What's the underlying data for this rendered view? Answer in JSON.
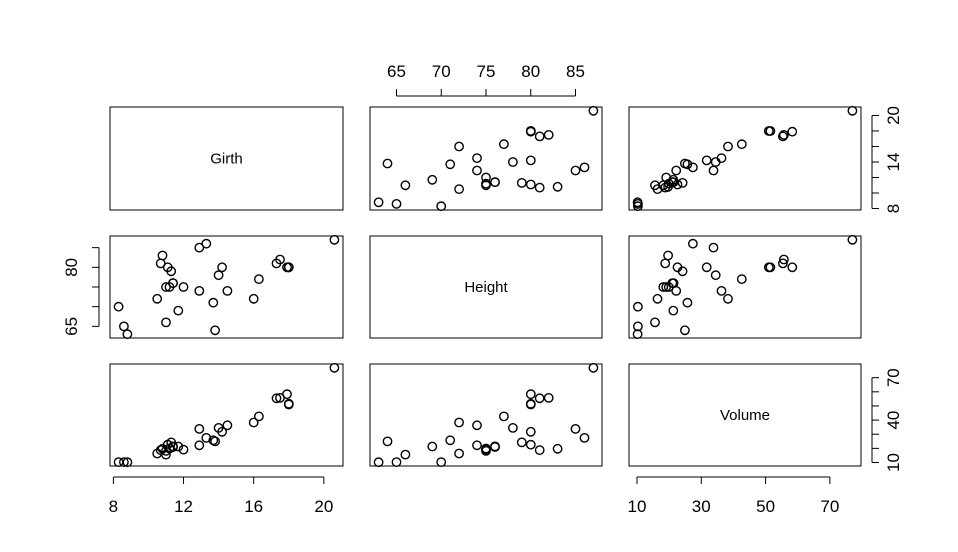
{
  "chart_data": {
    "type": "scatter",
    "title": "",
    "variables": [
      "Girth",
      "Height",
      "Volume"
    ],
    "ranges": {
      "Girth": [
        8.3,
        20.6
      ],
      "Height": [
        63,
        87
      ],
      "Volume": [
        10.2,
        77.0
      ]
    },
    "ticks": {
      "Girth": [
        8,
        12,
        16,
        20
      ],
      "Height": [
        65,
        70,
        75,
        80,
        85
      ],
      "Volume": [
        10,
        30,
        50,
        70
      ]
    },
    "tick_labels": {
      "Girth": [
        "8",
        "12",
        "16",
        "20"
      ],
      "Height": [
        "65",
        "70",
        "75",
        "80",
        "85"
      ],
      "Volume": [
        "10",
        "30",
        "50",
        "70"
      ]
    },
    "left_axis_ticks": {
      "Height": [
        65,
        70,
        75,
        80,
        85
      ]
    },
    "left_axis_labels": {
      "Height": [
        "65",
        "",
        "",
        "80",
        ""
      ]
    },
    "right_axis_ticks": {
      "Girth": [
        8,
        10,
        12,
        14,
        16,
        18,
        20
      ],
      "Volume": [
        10,
        20,
        30,
        40,
        50,
        60,
        70
      ]
    },
    "right_axis_labels": {
      "Girth": [
        "8",
        "",
        "",
        "14",
        "",
        "",
        "20"
      ],
      "Volume": [
        "10",
        "",
        "",
        "40",
        "",
        "",
        "70"
      ]
    },
    "grid": false,
    "points": {
      "Girth": [
        8.3,
        8.6,
        8.8,
        10.5,
        10.7,
        10.8,
        11.0,
        11.0,
        11.1,
        11.2,
        11.3,
        11.4,
        11.4,
        11.7,
        12.0,
        12.9,
        12.9,
        13.3,
        13.7,
        13.8,
        14.0,
        14.2,
        14.5,
        16.0,
        16.3,
        17.3,
        17.5,
        17.9,
        18.0,
        18.0,
        20.6
      ],
      "Height": [
        70,
        65,
        63,
        72,
        81,
        83,
        66,
        75,
        80,
        75,
        79,
        76,
        76,
        69,
        75,
        74,
        85,
        86,
        71,
        64,
        78,
        80,
        74,
        72,
        77,
        81,
        82,
        80,
        80,
        80,
        87
      ],
      "Volume": [
        10.3,
        10.3,
        10.2,
        16.4,
        18.8,
        19.7,
        15.6,
        18.2,
        22.6,
        19.9,
        24.2,
        21.0,
        21.4,
        21.3,
        19.1,
        22.2,
        33.8,
        27.4,
        25.7,
        24.9,
        34.5,
        31.7,
        36.3,
        38.3,
        42.6,
        55.4,
        55.7,
        58.3,
        51.5,
        51.0,
        77.0
      ]
    }
  }
}
